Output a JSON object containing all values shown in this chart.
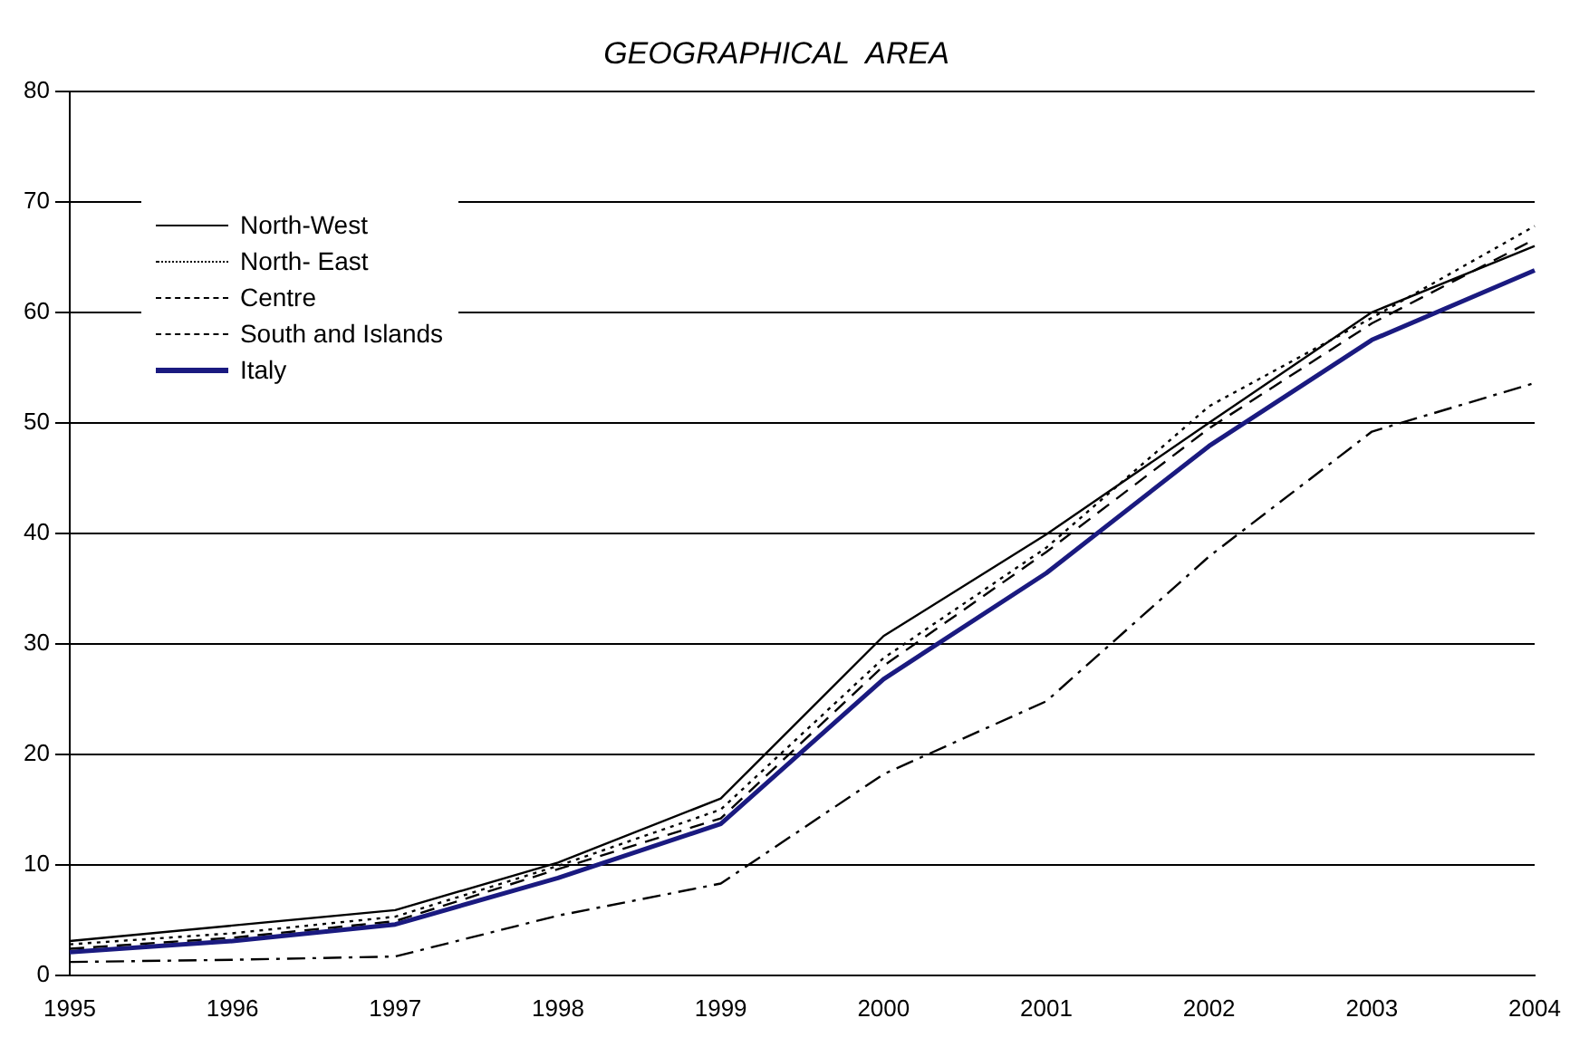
{
  "chart_data": {
    "type": "line",
    "title": "GEOGRAPHICAL  AREA",
    "categories": [
      "1995",
      "1996",
      "1997",
      "1998",
      "1999",
      "2000",
      "2001",
      "2002",
      "2003",
      "2004"
    ],
    "series": [
      {
        "name": "North-West",
        "color": "#000000",
        "line_style": "solid",
        "values": [
          3.1,
          4.5,
          5.9,
          10.2,
          16,
          30.7,
          39.9,
          50,
          60,
          66
        ]
      },
      {
        "name": "North- East",
        "color": "#000000",
        "line_style": "dotted",
        "values": [
          2.8,
          3.8,
          5.3,
          9.9,
          15,
          28.7,
          38.7,
          51.5,
          59.5,
          67.8
        ]
      },
      {
        "name": "Centre",
        "color": "#000000",
        "line_style": "dashed",
        "values": [
          2.4,
          3.4,
          4.9,
          9.6,
          14.2,
          28,
          38.3,
          49.5,
          59,
          66.6
        ]
      },
      {
        "name": "South and Islands",
        "color": "#000000",
        "line_style": "dashdot",
        "values": [
          1.2,
          1.4,
          1.7,
          5.4,
          8.3,
          18.2,
          24.8,
          37.9,
          49.2,
          53.6
        ]
      },
      {
        "name": "Italy",
        "color": "#1a1a80",
        "line_style": "solid",
        "values": [
          2.1,
          3.1,
          4.6,
          8.8,
          13.7,
          26.8,
          36.4,
          47.9,
          57.5,
          63.8
        ]
      }
    ],
    "ylim": [
      0,
      80
    ],
    "yticks": [
      0,
      10,
      20,
      30,
      40,
      50,
      60,
      70,
      80
    ],
    "grid": "y",
    "legend": "top left",
    "marker": "none"
  }
}
